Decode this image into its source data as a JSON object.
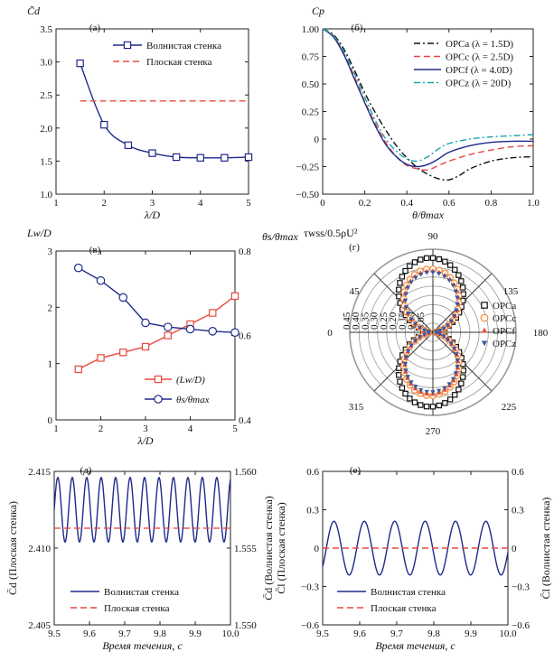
{
  "chart_data": [
    {
      "id": "a",
      "panel_label": "(а)",
      "type": "line",
      "ylabel": "C̄d",
      "xlabel": "λ/D",
      "xlim": [
        1,
        5
      ],
      "ylim": [
        1.0,
        3.5
      ],
      "xticks": [
        "1",
        "2",
        "3",
        "4",
        "5"
      ],
      "yticks": [
        "1.0",
        "1.5",
        "2.0",
        "2.5",
        "3.0",
        "3.5"
      ],
      "legend_position": "top-right",
      "series": [
        {
          "name": "Волнистая стенка",
          "color": "#1f2a8a",
          "style": "solid",
          "marker": "square",
          "x": [
            1.5,
            2.0,
            2.5,
            3.0,
            3.5,
            4.0,
            4.5,
            5.0
          ],
          "y": [
            2.98,
            2.05,
            1.74,
            1.62,
            1.56,
            1.55,
            1.55,
            1.56
          ]
        },
        {
          "name": "Плоская стенка",
          "color": "#e8493f",
          "style": "dashed",
          "x": [
            1.5,
            5.0
          ],
          "y": [
            2.41,
            2.41
          ]
        }
      ]
    },
    {
      "id": "b",
      "panel_label": "(б)",
      "type": "line",
      "ylabel": "Cp",
      "xlabel": "θ/θmax",
      "xlim": [
        0,
        1.0
      ],
      "ylim": [
        -0.5,
        1.0
      ],
      "xticks": [
        "0",
        "0.2",
        "0.4",
        "0.6",
        "0.8",
        "1.0"
      ],
      "yticks": [
        "−0.50",
        "−0.25",
        "0",
        "0.25",
        "0.50",
        "0.75",
        "1.00"
      ],
      "legend_position": "top-right",
      "series": [
        {
          "name": "OPCa (λ = 1.5D)",
          "color": "#111111",
          "style": "dashdot",
          "x": [
            0,
            0.05,
            0.1,
            0.15,
            0.2,
            0.25,
            0.3,
            0.35,
            0.4,
            0.45,
            0.5,
            0.55,
            0.6,
            0.65,
            0.7,
            0.8,
            0.9,
            1.0
          ],
          "y": [
            1.0,
            0.95,
            0.82,
            0.63,
            0.42,
            0.24,
            0.08,
            -0.06,
            -0.17,
            -0.26,
            -0.32,
            -0.36,
            -0.37,
            -0.33,
            -0.27,
            -0.2,
            -0.17,
            -0.16
          ]
        },
        {
          "name": "OPCc (λ = 2.5D)",
          "color": "#e8493f",
          "style": "dashed",
          "x": [
            0,
            0.05,
            0.1,
            0.15,
            0.2,
            0.25,
            0.3,
            0.35,
            0.4,
            0.45,
            0.5,
            0.55,
            0.6,
            0.7,
            0.8,
            0.9,
            1.0
          ],
          "y": [
            1.0,
            0.94,
            0.78,
            0.57,
            0.34,
            0.14,
            -0.03,
            -0.16,
            -0.24,
            -0.27,
            -0.28,
            -0.24,
            -0.2,
            -0.14,
            -0.1,
            -0.07,
            -0.06
          ]
        },
        {
          "name": "OPCf (λ = 4.0D)",
          "color": "#1f2a8a",
          "style": "solid",
          "x": [
            0,
            0.05,
            0.1,
            0.15,
            0.2,
            0.25,
            0.3,
            0.35,
            0.4,
            0.45,
            0.5,
            0.55,
            0.6,
            0.7,
            0.8,
            0.9,
            1.0
          ],
          "y": [
            1.0,
            0.93,
            0.77,
            0.55,
            0.33,
            0.12,
            -0.05,
            -0.16,
            -0.23,
            -0.25,
            -0.23,
            -0.18,
            -0.12,
            -0.06,
            -0.03,
            -0.02,
            -0.02
          ]
        },
        {
          "name": "OPCz (λ = 20D)",
          "color": "#1aa3a8",
          "style": "dashdot",
          "x": [
            0,
            0.05,
            0.1,
            0.15,
            0.2,
            0.25,
            0.3,
            0.35,
            0.4,
            0.45,
            0.5,
            0.55,
            0.6,
            0.7,
            0.8,
            0.9,
            1.0
          ],
          "y": [
            1.0,
            0.94,
            0.8,
            0.6,
            0.38,
            0.17,
            0.0,
            -0.11,
            -0.18,
            -0.2,
            -0.16,
            -0.09,
            -0.04,
            0.0,
            0.02,
            0.03,
            0.04
          ]
        }
      ]
    },
    {
      "id": "v",
      "panel_label": "(в)",
      "type": "line",
      "ylabel": "Lw/D",
      "ylabel_right": "θs/θmax",
      "xlabel": "λ/D",
      "xlim": [
        1,
        5
      ],
      "ylim": [
        0,
        3
      ],
      "ylim_right": [
        0.4,
        0.8
      ],
      "xticks": [
        "1",
        "2",
        "3",
        "4",
        "5"
      ],
      "yticks": [
        "0",
        "1",
        "2",
        "3"
      ],
      "yticks_right": [
        "0.4",
        "0.6",
        "0.8"
      ],
      "legend_position": "bottom-right",
      "series": [
        {
          "name": "(Lw/D)",
          "axis": "left",
          "color": "#e8493f",
          "style": "solid",
          "marker": "square",
          "x": [
            1.5,
            2.0,
            2.5,
            3.0,
            3.5,
            4.0,
            4.5,
            5.0
          ],
          "y": [
            0.9,
            1.1,
            1.2,
            1.3,
            1.5,
            1.7,
            1.9,
            2.2
          ]
        },
        {
          "name": "θs/θmax",
          "axis": "right",
          "color": "#1f2a8a",
          "style": "solid",
          "marker": "circle",
          "x": [
            1.5,
            2.0,
            2.5,
            3.0,
            3.5,
            4.0,
            4.5,
            5.0
          ],
          "y": [
            0.76,
            0.73,
            0.69,
            0.63,
            0.62,
            0.615,
            0.61,
            0.607
          ]
        }
      ]
    },
    {
      "id": "g",
      "panel_label": "(г)",
      "type": "scatter",
      "projection": "polar",
      "title": "τwss/0.5ρU²",
      "angle_labels": [
        "90",
        "135",
        "180",
        "225",
        "270",
        "315",
        "0",
        "45"
      ],
      "radial_labels": [
        "0.05",
        "0.10",
        "0.15",
        "0.20",
        "0.25",
        "0.30",
        "0.35",
        "0.40",
        "0.45"
      ],
      "rmax": 0.45,
      "legend_position": "right",
      "series": [
        {
          "name": "OPCa",
          "color": "#111111",
          "marker": "square",
          "rpeak": 0.41
        },
        {
          "name": "OPCc",
          "color": "#f08a3a",
          "marker": "circle",
          "rpeak": 0.35
        },
        {
          "name": "OPCf",
          "color": "#e8493f",
          "marker": "triangle-up",
          "rpeak": 0.34
        },
        {
          "name": "OPCz",
          "color": "#2f5aa6",
          "marker": "triangle-down",
          "rpeak": 0.33
        }
      ]
    },
    {
      "id": "d",
      "panel_label": "(д)",
      "type": "line",
      "ylabel": "C̄d (Плоская стенка)",
      "ylabel_right": "C̄d (Волнистая стенка)",
      "xlabel": "Время течения, с",
      "xlim": [
        9.5,
        10.0
      ],
      "ylim": [
        2.405,
        2.415
      ],
      "ylim_right": [
        1.55,
        1.56
      ],
      "xticks": [
        "9.5",
        "9.6",
        "9.7",
        "9.8",
        "9.9",
        "10.0"
      ],
      "yticks": [
        "2.405",
        "2.410",
        "2.415"
      ],
      "yticks_right": [
        "1.550",
        "1.555",
        "1.560"
      ],
      "legend_position": "bottom-center",
      "series": [
        {
          "name": "Волнистая стенка",
          "axis": "right",
          "color": "#1f2a8a",
          "style": "solid",
          "wave": {
            "mean": 1.5575,
            "amplitude": 0.0021,
            "period": 0.041,
            "phase_x": 9.5
          }
        },
        {
          "name": "Плоская стенка",
          "axis": "left",
          "color": "#e8493f",
          "style": "dashed",
          "x": [
            9.5,
            10.0
          ],
          "y": [
            2.4113,
            2.4113
          ]
        }
      ]
    },
    {
      "id": "e",
      "panel_label": "(е)",
      "type": "line",
      "ylabel": "C̄l (Плоская стенка)",
      "ylabel_right": "C̄l (Волнистая стенка)",
      "xlabel": "Время течения, с",
      "xlim": [
        9.5,
        10.0
      ],
      "ylim": [
        -0.6,
        0.6
      ],
      "ylim_right": [
        -0.6,
        0.6
      ],
      "xticks": [
        "9.5",
        "9.6",
        "9.7",
        "9.8",
        "9.9",
        "10.0"
      ],
      "yticks": [
        "−0.6",
        "−0.3",
        "0",
        "0.3",
        "0.6"
      ],
      "yticks_right": [
        "−0.6",
        "−0.3",
        "0",
        "0.3",
        "0.6"
      ],
      "legend_position": "bottom-center",
      "series": [
        {
          "name": "Волнистая стенка",
          "axis": "right",
          "color": "#1f2a8a",
          "style": "solid",
          "wave": {
            "mean": 0,
            "amplitude": 0.21,
            "period": 0.082,
            "phase_x": 9.51
          }
        },
        {
          "name": "Плоская стенка",
          "axis": "left",
          "color": "#e8493f",
          "style": "dashed",
          "x": [
            9.5,
            10.0
          ],
          "y": [
            0,
            0
          ]
        }
      ]
    }
  ]
}
